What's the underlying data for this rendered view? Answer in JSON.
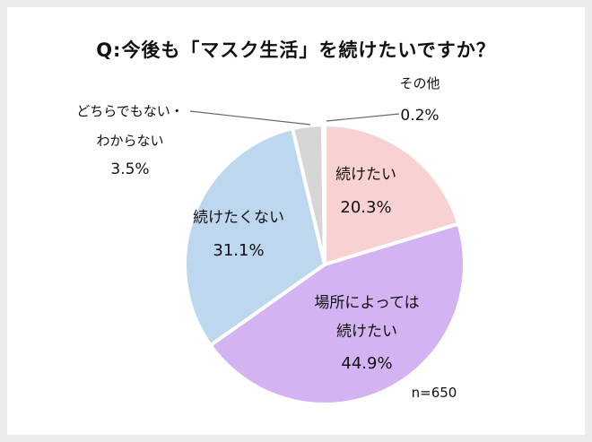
{
  "chart_data": {
    "type": "pie",
    "title": "Q:今後も「マスク生活」を続けたいですか？",
    "note": "n=650",
    "slices": [
      {
        "label": "続けたい",
        "value": 20.3,
        "value_label": "20.3%",
        "color": "#f8d2d2"
      },
      {
        "label": "場所によっては続けたい",
        "label_lines": [
          "場所によっては",
          "続けたい"
        ],
        "value": 44.9,
        "value_label": "44.9%",
        "color": "#d4b3f3"
      },
      {
        "label": "続けたくない",
        "value": 31.1,
        "value_label": "31.1%",
        "color": "#bdd7ee"
      },
      {
        "label": "どちらでもない・わからない",
        "label_lines": [
          "どちらでもない・",
          "わからない"
        ],
        "value": 3.5,
        "value_label": "3.5%",
        "color": "#d6d6d6"
      },
      {
        "label": "その他",
        "value": 0.2,
        "value_label": "0.2%",
        "color": "#ffffff"
      }
    ]
  }
}
